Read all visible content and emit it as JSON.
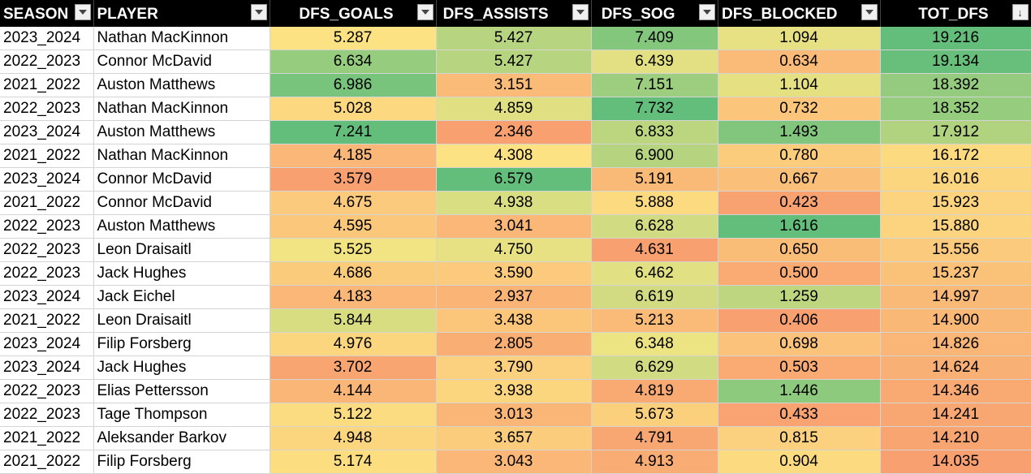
{
  "columns": [
    {
      "label": "SEASON",
      "align": "left",
      "filter": "dropdown"
    },
    {
      "label": "PLAYER",
      "align": "left",
      "filter": "dropdown"
    },
    {
      "label": "DFS_GOALS",
      "align": "right",
      "filter": "dropdown"
    },
    {
      "label": "DFS_ASSISTS",
      "align": "right",
      "filter": "dropdown"
    },
    {
      "label": "DFS_SOG",
      "align": "right",
      "filter": "dropdown"
    },
    {
      "label": "DFS_BLOCKED",
      "align": "right",
      "filter": "dropdown"
    },
    {
      "label": "TOT_DFS",
      "align": "right",
      "filter": "sort-desc"
    }
  ],
  "rows": [
    [
      "2023_2024",
      "Nathan MacKinnon",
      "5.287",
      "5.427",
      "7.409",
      "1.094",
      "19.216"
    ],
    [
      "2022_2023",
      "Connor McDavid",
      "6.634",
      "5.427",
      "6.439",
      "0.634",
      "19.134"
    ],
    [
      "2021_2022",
      "Auston Matthews",
      "6.986",
      "3.151",
      "7.151",
      "1.104",
      "18.392"
    ],
    [
      "2022_2023",
      "Nathan MacKinnon",
      "5.028",
      "4.859",
      "7.732",
      "0.732",
      "18.352"
    ],
    [
      "2023_2024",
      "Auston Matthews",
      "7.241",
      "2.346",
      "6.833",
      "1.493",
      "17.912"
    ],
    [
      "2021_2022",
      "Nathan MacKinnon",
      "4.185",
      "4.308",
      "6.900",
      "0.780",
      "16.172"
    ],
    [
      "2023_2024",
      "Connor McDavid",
      "3.579",
      "6.579",
      "5.191",
      "0.667",
      "16.016"
    ],
    [
      "2021_2022",
      "Connor McDavid",
      "4.675",
      "4.938",
      "5.888",
      "0.423",
      "15.923"
    ],
    [
      "2022_2023",
      "Auston Matthews",
      "4.595",
      "3.041",
      "6.628",
      "1.616",
      "15.880"
    ],
    [
      "2022_2023",
      "Leon Draisaitl",
      "5.525",
      "4.750",
      "4.631",
      "0.650",
      "15.556"
    ],
    [
      "2022_2023",
      "Jack Hughes",
      "4.686",
      "3.590",
      "6.462",
      "0.500",
      "15.237"
    ],
    [
      "2023_2024",
      "Jack Eichel",
      "4.183",
      "2.937",
      "6.619",
      "1.259",
      "14.997"
    ],
    [
      "2021_2022",
      "Leon Draisaitl",
      "5.844",
      "3.438",
      "5.213",
      "0.406",
      "14.900"
    ],
    [
      "2023_2024",
      "Filip Forsberg",
      "4.976",
      "2.805",
      "6.348",
      "0.698",
      "14.826"
    ],
    [
      "2023_2024",
      "Jack Hughes",
      "3.702",
      "3.790",
      "6.629",
      "0.503",
      "14.624"
    ],
    [
      "2022_2023",
      "Elias Pettersson",
      "4.144",
      "3.938",
      "4.819",
      "1.446",
      "14.346"
    ],
    [
      "2022_2023",
      "Tage Thompson",
      "5.122",
      "3.013",
      "5.673",
      "0.433",
      "14.241"
    ],
    [
      "2021_2022",
      "Aleksander Barkov",
      "4.948",
      "3.657",
      "4.791",
      "0.815",
      "14.210"
    ],
    [
      "2021_2022",
      "Filip Forsberg",
      "5.174",
      "3.043",
      "4.913",
      "0.904",
      "14.035"
    ]
  ],
  "colors": {
    "header_bg": "#000000",
    "header_text": "#ffffff",
    "scale_low": "#f8a070",
    "scale_mid": "#fde784",
    "scale_high": "#63be7b"
  }
}
